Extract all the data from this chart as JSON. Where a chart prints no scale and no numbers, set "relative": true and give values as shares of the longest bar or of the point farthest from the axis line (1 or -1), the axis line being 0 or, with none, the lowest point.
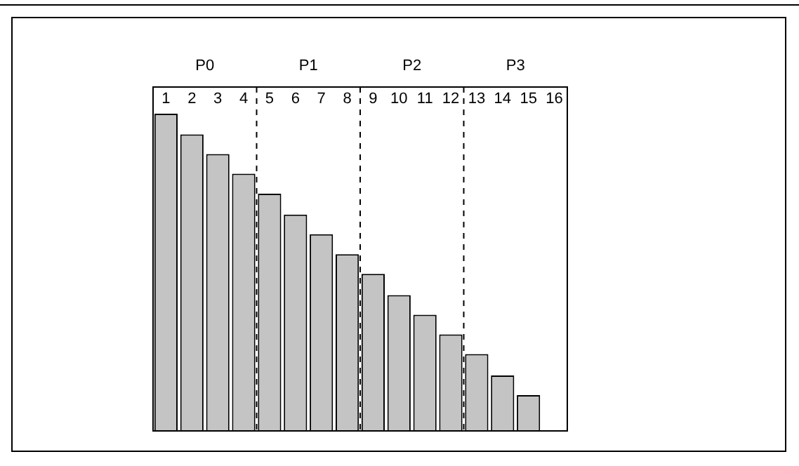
{
  "chart_data": {
    "type": "bar",
    "relative": true,
    "x": [
      1,
      2,
      3,
      4,
      5,
      6,
      7,
      8,
      9,
      10,
      11,
      12,
      13,
      14,
      15,
      16
    ],
    "values": [
      1,
      0.935,
      0.873,
      0.811,
      0.748,
      0.682,
      0.62,
      0.557,
      0.495,
      0.428,
      0.366,
      0.304,
      0.242,
      0.175,
      0.113,
      0
    ],
    "color": "#c4c4c4",
    "xlim": [
      0.5,
      16.5
    ],
    "xticks": [
      1,
      2,
      3,
      4,
      5,
      6,
      7,
      8,
      9,
      10,
      11,
      12,
      13,
      14,
      15,
      16
    ],
    "ref_lines": [
      {
        "axis": "x",
        "value": 4.5,
        "line_style": "dashed"
      },
      {
        "axis": "x",
        "value": 8.5,
        "line_style": "dashed"
      },
      {
        "axis": "x",
        "value": 12.5,
        "line_style": "dashed"
      }
    ],
    "annotations": [
      "P0",
      "P1",
      "P2",
      "P3"
    ],
    "grid": false,
    "legend": false
  }
}
